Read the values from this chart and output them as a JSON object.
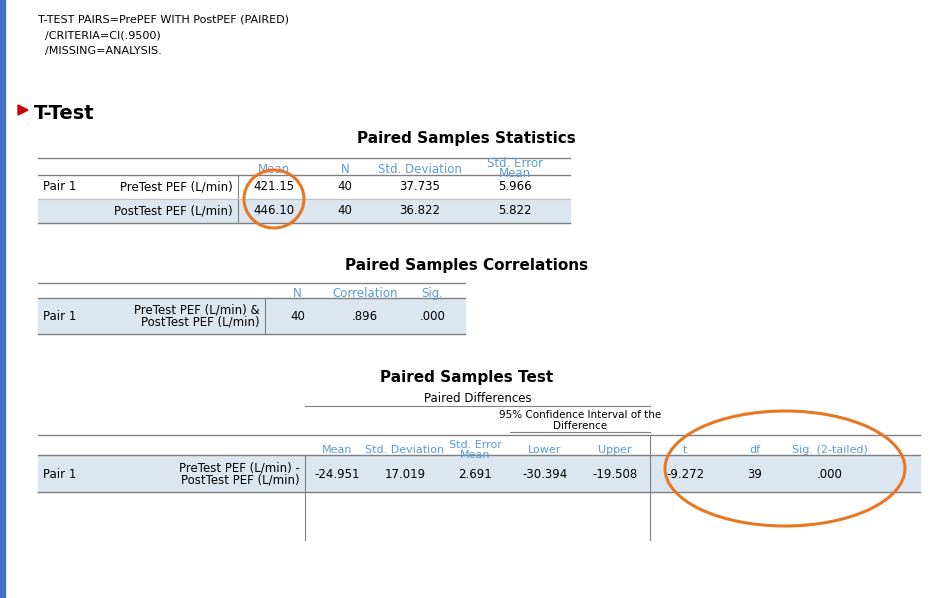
{
  "bg_color": "#ffffff",
  "syntax_lines": [
    "T-TEST PAIRS=PrePEF WITH PostPEF (PAIRED)",
    "  /CRITERIA=CI(.9500)",
    "  /MISSING=ANALYSIS."
  ],
  "ttest_label": "T-Test",
  "section1_title": "Paired Samples Statistics",
  "section1_rows": [
    [
      "PreTest PEF (L/min)",
      "421.15",
      "40",
      "37.735",
      "5.966"
    ],
    [
      "PostTest PEF (L/min)",
      "446.10",
      "40",
      "36.822",
      "5.822"
    ]
  ],
  "section2_title": "Paired Samples Correlations",
  "section2_rows": [
    [
      "PreTest PEF (L/min) &",
      "PostTest PEF (L/min)",
      "40",
      ".896",
      ".000"
    ]
  ],
  "section3_title": "Paired Samples Test",
  "section3_rows": [
    [
      "PreTest PEF (L/min) -",
      "PostTest PEF (L/min)",
      "-24.951",
      "17.019",
      "2.691",
      "-30.394",
      "-19.508",
      "-9.272",
      "39",
      ".000"
    ]
  ],
  "orange_color": "#E87722",
  "arrow_color": "#cc0000",
  "header_blue": "#5B9BD5",
  "line_color": "#808080",
  "row_bg": "#dce6f1",
  "text_dark": "#1F1F1F"
}
